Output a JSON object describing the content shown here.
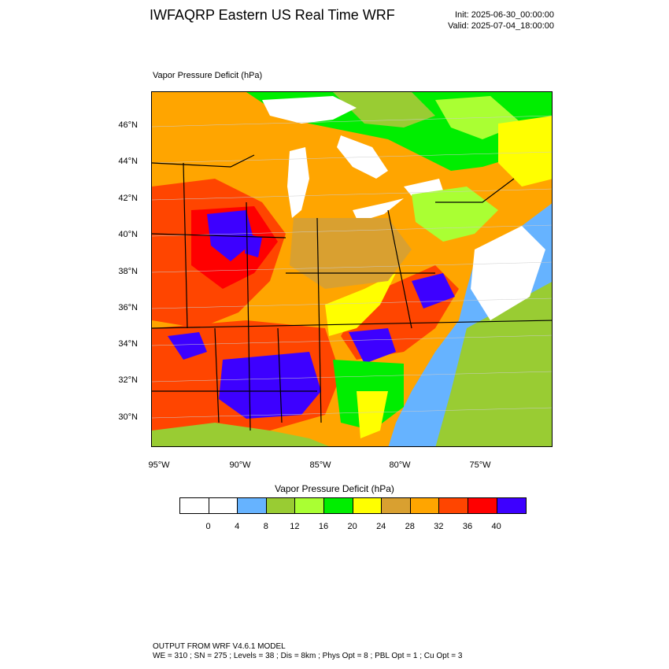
{
  "header": {
    "title": "IWFAQRP Eastern US Real Time WRF",
    "init": "Init: 2025-06-30_00:00:00",
    "valid": "Valid: 2025-07-04_18:00:00"
  },
  "map": {
    "field_label": "Vapor Pressure Deficit   (hPa)",
    "lat_labels": [
      "46°N",
      "44°N",
      "42°N",
      "40°N",
      "38°N",
      "36°N",
      "34°N",
      "32°N",
      "30°N"
    ],
    "lon_labels": [
      "95°W",
      "90°W",
      "85°W",
      "80°W",
      "75°W"
    ],
    "region_colors": {
      "water": "#ffffff",
      "ocean_light_blue": "#66b3ff",
      "ocean_olive": "#99cc33",
      "land_orange": "#ffa500",
      "land_dark_orange": "#d9a030",
      "land_red_orange": "#ff4500",
      "land_red": "#ff0000",
      "land_purple": "#3d00ff",
      "land_green": "#00ee00",
      "land_yellow": "#ffff00",
      "land_light_green": "#aaff33"
    }
  },
  "colorbar": {
    "title": "Vapor Pressure Deficit  (hPa)",
    "colors": [
      "#ffffff",
      "#ffffff",
      "#66b3ff",
      "#99cc33",
      "#aaff33",
      "#00ee00",
      "#ffff00",
      "#d9a030",
      "#ffa500",
      "#ff4500",
      "#ff0000",
      "#3d00ff"
    ],
    "labels": [
      "0",
      "4",
      "8",
      "12",
      "16",
      "20",
      "24",
      "28",
      "32",
      "36",
      "40"
    ]
  },
  "footer": {
    "line1": "OUTPUT FROM WRF V4.6.1 MODEL",
    "line2": "WE = 310 ; SN = 275 ; Levels = 38 ; Dis = 8km ; Phys Opt = 8 ; PBL Opt = 1 ; Cu Opt = 3"
  }
}
